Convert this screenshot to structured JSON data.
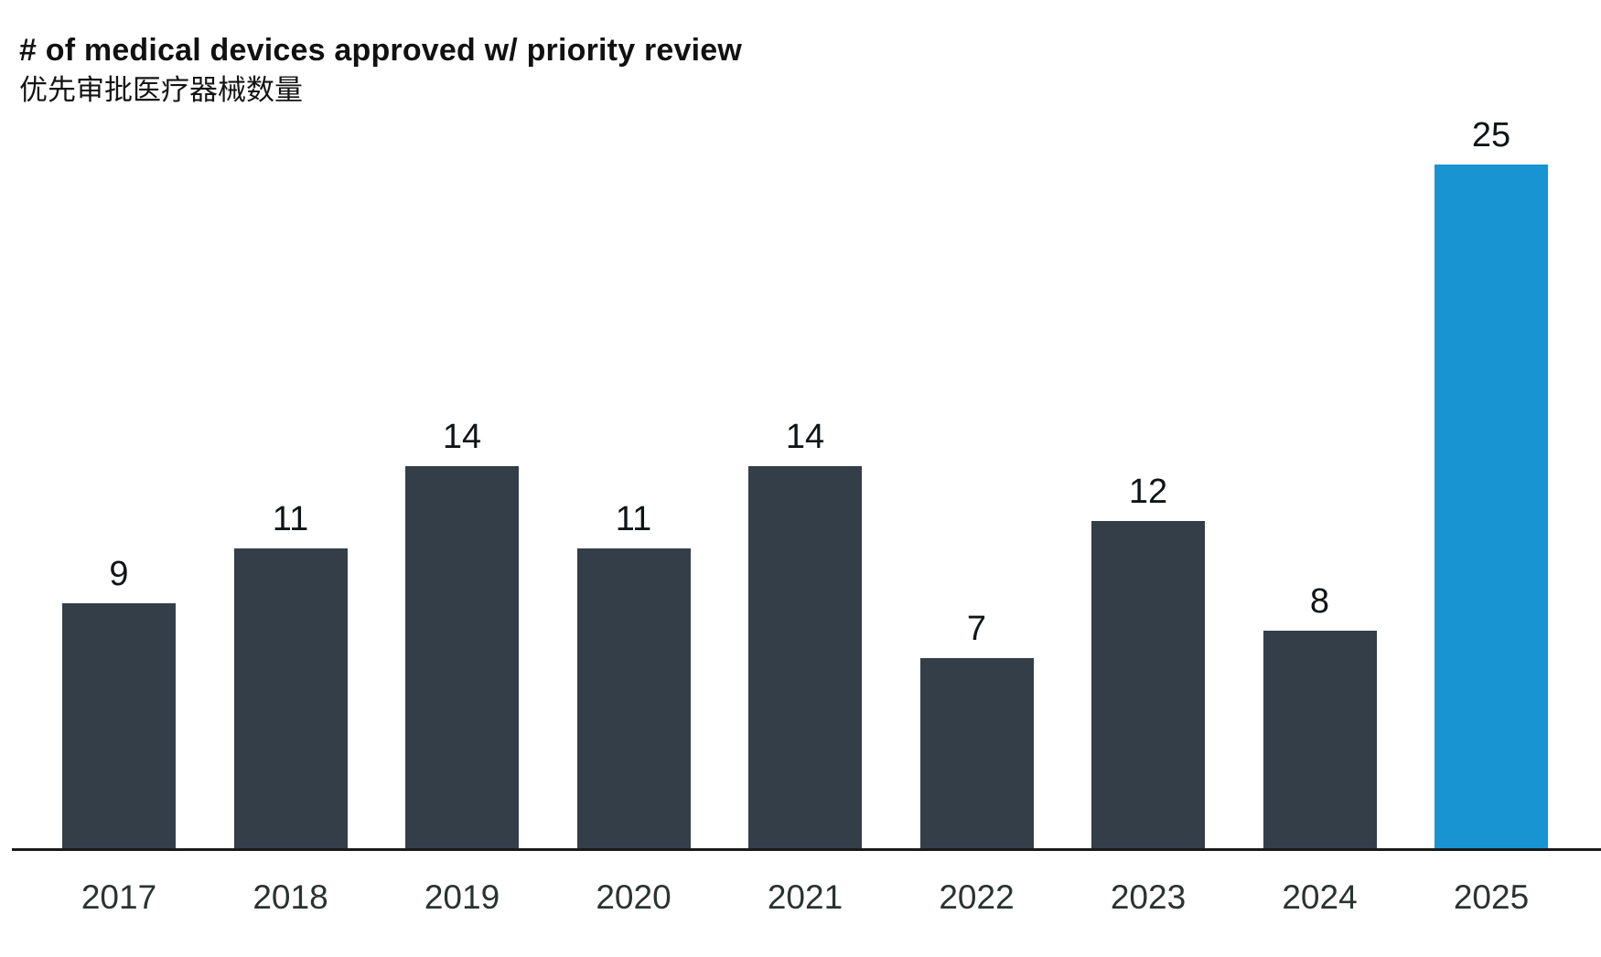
{
  "header": {
    "title": "# of medical devices approved w/ priority review",
    "subtitle": "优先审批医疗器械数量"
  },
  "chart_data": {
    "type": "bar",
    "categories": [
      "2017",
      "2018",
      "2019",
      "2020",
      "2021",
      "2022",
      "2023",
      "2024",
      "2025"
    ],
    "values": [
      9,
      11,
      14,
      11,
      14,
      7,
      12,
      8,
      25
    ],
    "title": "# of medical devices approved w/ priority review",
    "subtitle": "优先审批医疗器械数量",
    "xlabel": "",
    "ylabel": "",
    "ylim": [
      0,
      25
    ],
    "grid": false,
    "legend": false,
    "data_labels_shown": true,
    "highlight_category": "2025",
    "colors": {
      "bar": "#333e49",
      "highlight_bar": "#1794d1",
      "axis_line": "#1a1a1a",
      "value_label": "#101417",
      "tick_label": "#2b332f",
      "title": "#111111",
      "background": "#ffffff"
    }
  }
}
